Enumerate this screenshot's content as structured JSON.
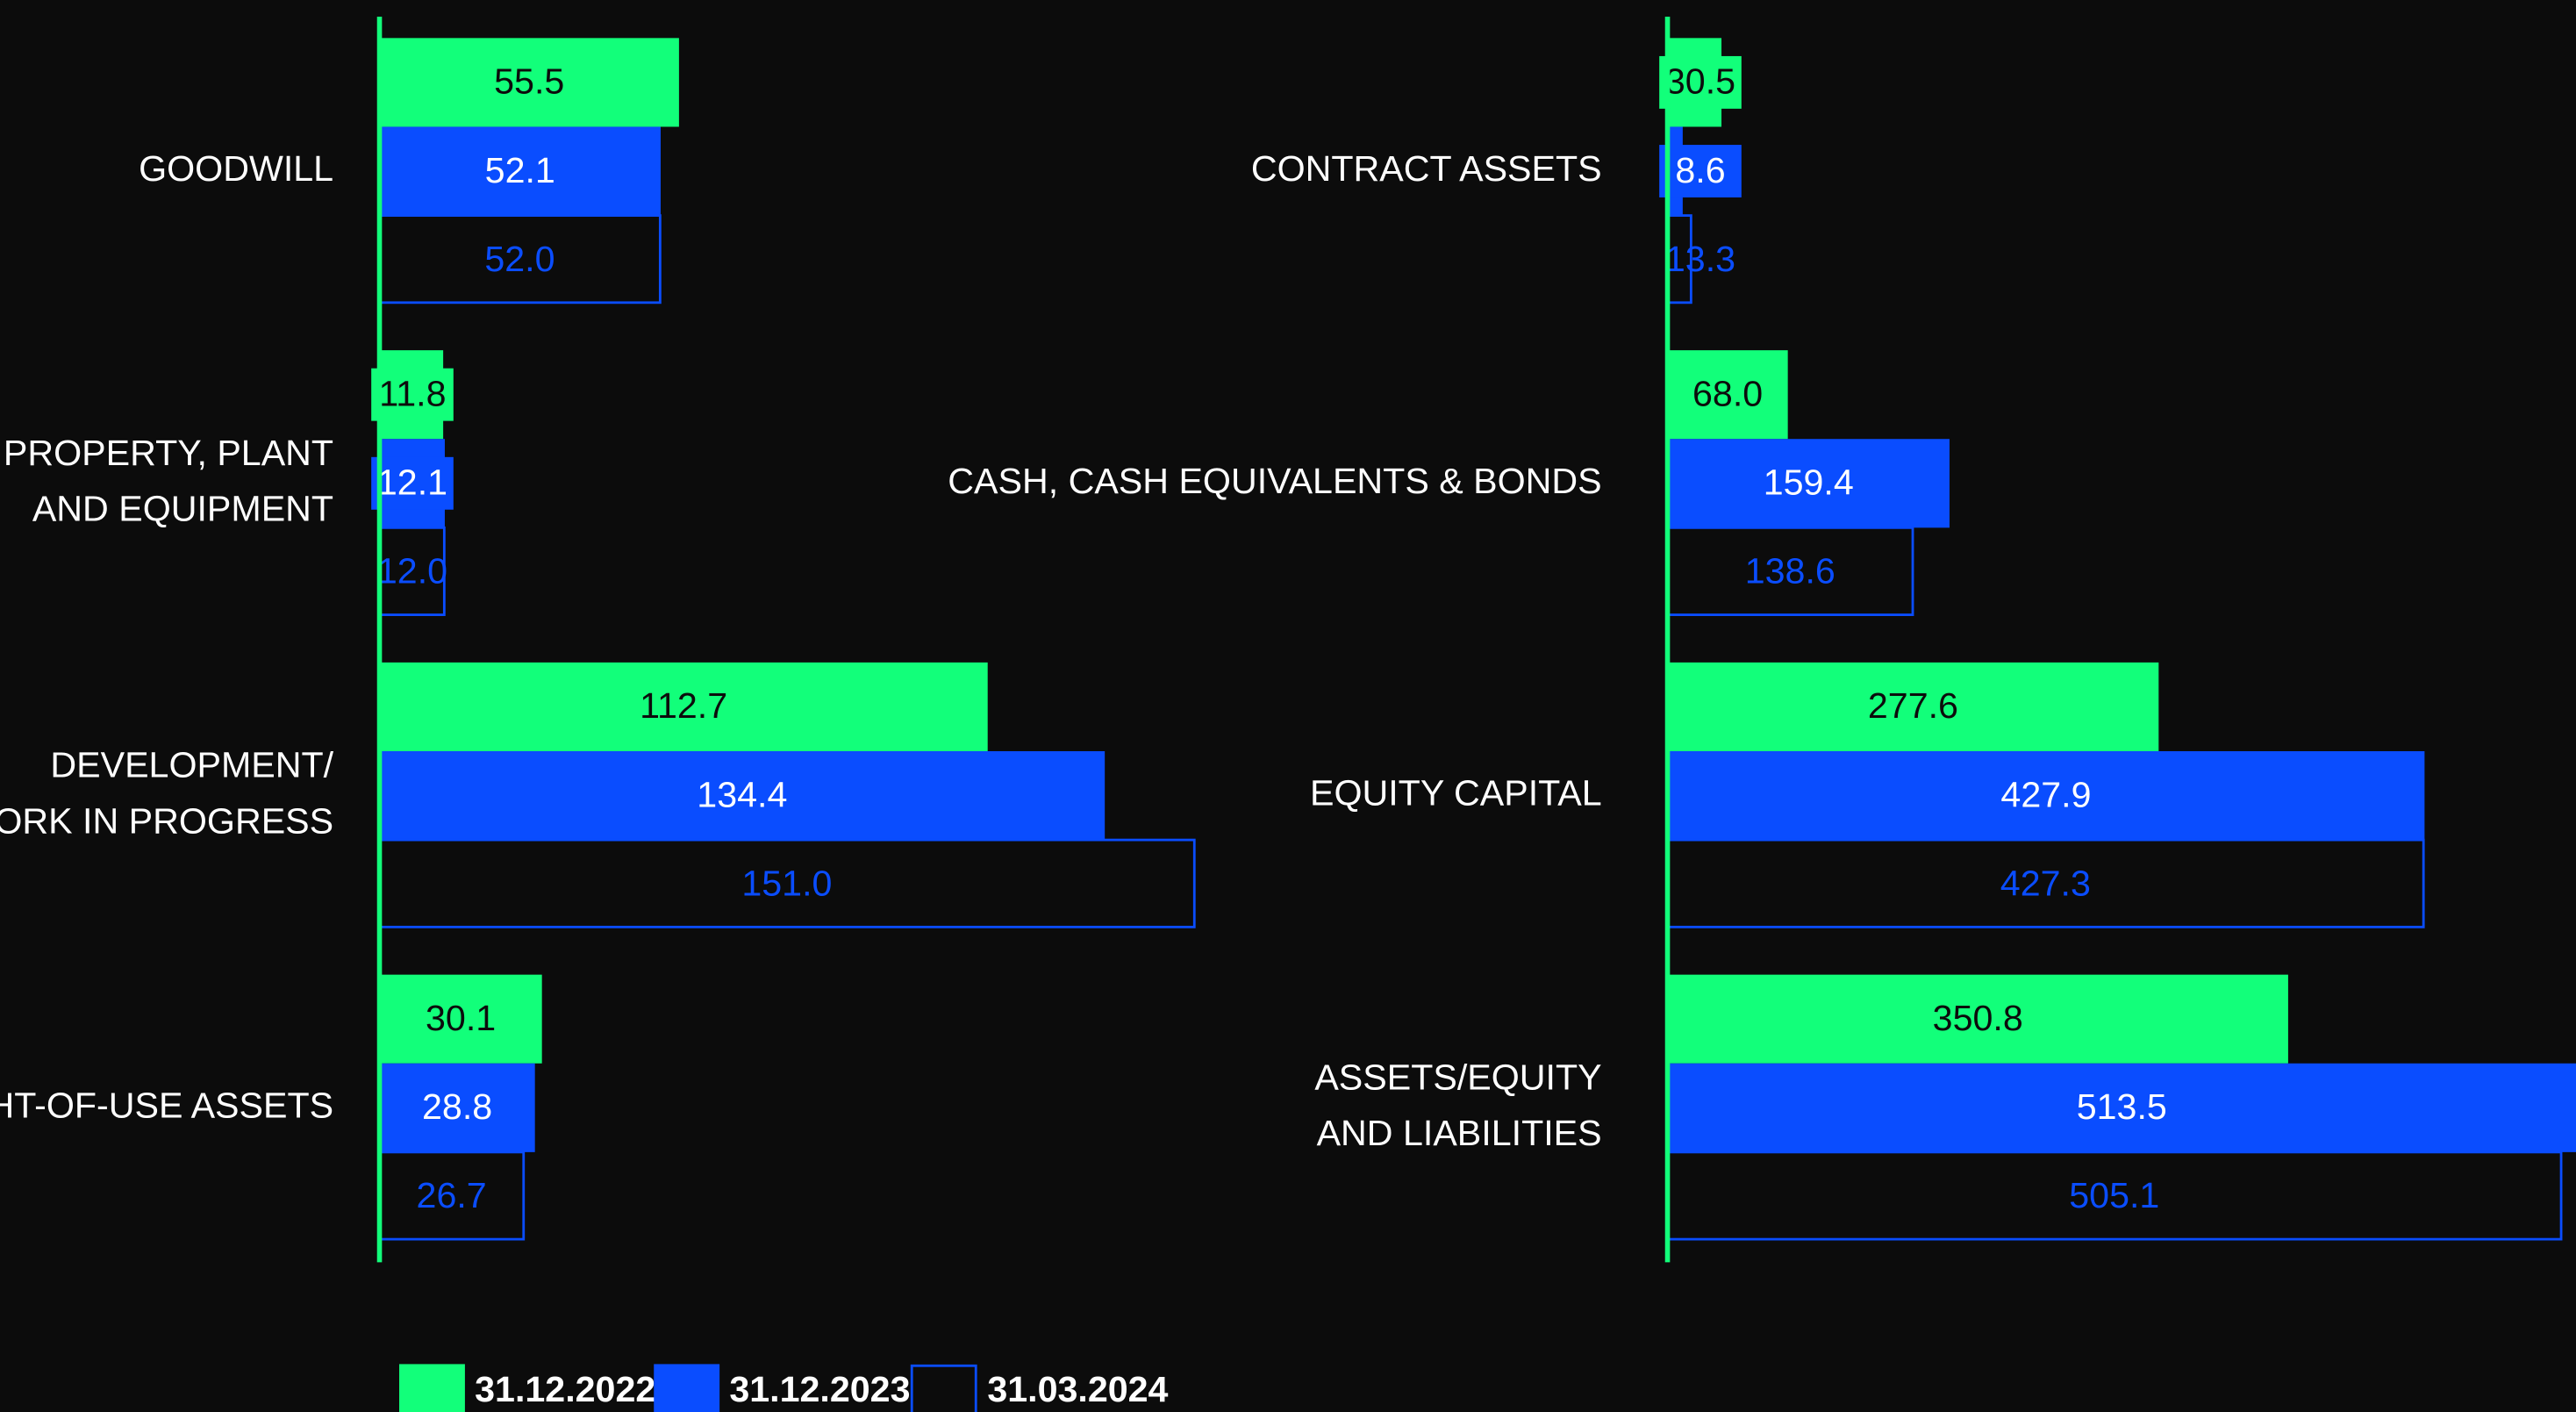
{
  "chart_data": [
    {
      "type": "bar",
      "orientation": "horizontal",
      "categories": [
        [
          "GOODWILL"
        ],
        [
          "PROPERTY, PLANT",
          "AND EQUIPMENT"
        ],
        [
          "DEVELOPMENT/",
          "WORK IN PROGRESS"
        ],
        [
          "RIGHT-OF-USE ASSETS"
        ]
      ],
      "series": [
        {
          "name": "31.12.2022",
          "color": "#12ff7a",
          "outline": false,
          "values": [
            55.5,
            11.8,
            112.7,
            30.1
          ],
          "value_labels": [
            "55.5",
            "11.8",
            "112.7",
            "30.1"
          ]
        },
        {
          "name": "31.12.2023",
          "color": "#0a4dff",
          "outline": false,
          "values": [
            52.1,
            12.1,
            134.4,
            28.8
          ],
          "value_labels": [
            "52.1",
            "12.1",
            "134.4",
            "28.8"
          ]
        },
        {
          "name": "31.03.2024",
          "color": "#0a4dff",
          "outline": true,
          "values": [
            52.0,
            12.0,
            151.0,
            26.7
          ],
          "value_labels": [
            "52.0",
            "12.0",
            "151.0",
            "26.7"
          ]
        }
      ]
    },
    {
      "type": "bar",
      "orientation": "horizontal",
      "categories": [
        [
          "CONTRACT ASSETS"
        ],
        [
          "CASH, CASH EQUIVALENTS & BONDS"
        ],
        [
          "EQUITY CAPITAL"
        ],
        [
          "ASSETS/EQUITY",
          "AND LIABILITIES"
        ]
      ],
      "series": [
        {
          "name": "31.12.2022",
          "color": "#12ff7a",
          "outline": false,
          "values": [
            30.5,
            68.0,
            277.6,
            350.8
          ],
          "value_labels": [
            "30.5",
            "68.0",
            "277.6",
            "350.8"
          ]
        },
        {
          "name": "31.12.2023",
          "color": "#0a4dff",
          "outline": false,
          "values": [
            8.6,
            159.4,
            427.9,
            513.5
          ],
          "value_labels": [
            "8.6",
            "159.4",
            "427.9",
            "513.5"
          ]
        },
        {
          "name": "31.03.2024",
          "color": "#0a4dff",
          "outline": true,
          "values": [
            13.3,
            138.6,
            427.3,
            505.1
          ],
          "value_labels": [
            "13.3",
            "138.6",
            "427.3",
            "505.1"
          ]
        }
      ]
    }
  ]
}
